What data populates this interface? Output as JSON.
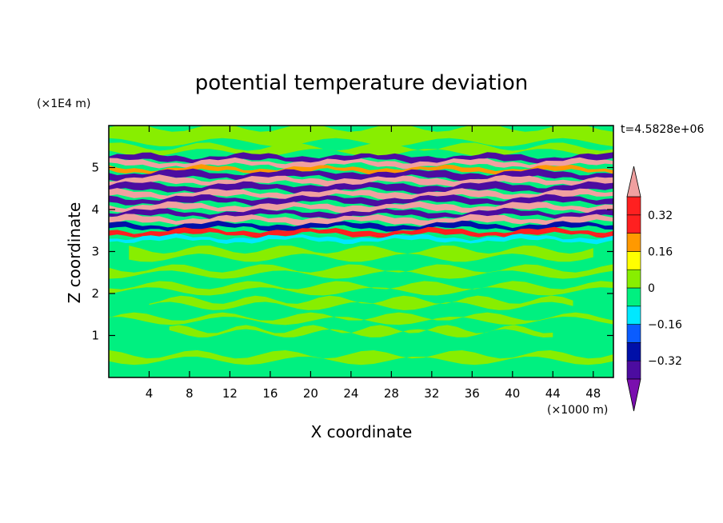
{
  "chart_data": {
    "type": "heatmap",
    "title": "potential temperature deviation",
    "xlabel": "X coordinate",
    "ylabel": "Z coordinate",
    "x_unit": "(×1000 m)",
    "y_unit": "(×1E4 m)",
    "time_label": "t=4.5828e+06",
    "x_range": [
      0,
      50
    ],
    "y_range": [
      0,
      6
    ],
    "x_ticks": [
      4,
      8,
      12,
      16,
      20,
      24,
      28,
      32,
      36,
      40,
      44,
      48
    ],
    "y_ticks": [
      1,
      2,
      3,
      4,
      5
    ],
    "colorbar": {
      "levels": [
        -0.4,
        -0.32,
        -0.24,
        -0.16,
        -0.08,
        0,
        0.08,
        0.16,
        0.24,
        0.32,
        0.4
      ],
      "labels": [
        0.32,
        0.16,
        0,
        -0.16,
        -0.32
      ],
      "label_text": [
        "0.32",
        "0.16",
        "0",
        "−0.16",
        "−0.32"
      ],
      "colors": [
        "#7a0fae",
        "#4c0ca0",
        "#0010a8",
        "#0a5cff",
        "#00e8ff",
        "#00f080",
        "#88ee00",
        "#ffff00",
        "#ff9900",
        "#ff2020",
        "#f0a0a0"
      ],
      "extend": "both"
    },
    "bands": [
      {
        "z": 5.22,
        "value": -0.34,
        "thickness": 0.07
      },
      {
        "z": 5.1,
        "value": 0.38,
        "thickness": 0.06
      },
      {
        "z": 4.95,
        "value": 0.2,
        "thickness": 0.05
      },
      {
        "z": 4.82,
        "value": -0.4,
        "thickness": 0.08
      },
      {
        "z": 4.68,
        "value": 0.4,
        "thickness": 0.07
      },
      {
        "z": 4.52,
        "value": -0.38,
        "thickness": 0.08
      },
      {
        "z": 4.36,
        "value": 0.36,
        "thickness": 0.07
      },
      {
        "z": 4.22,
        "value": -0.36,
        "thickness": 0.07
      },
      {
        "z": 4.05,
        "value": 0.32,
        "thickness": 0.07
      },
      {
        "z": 3.9,
        "value": -0.36,
        "thickness": 0.06
      },
      {
        "z": 3.75,
        "value": 0.38,
        "thickness": 0.07
      },
      {
        "z": 3.6,
        "value": -0.32,
        "thickness": 0.06
      },
      {
        "z": 3.45,
        "value": 0.28,
        "thickness": 0.06
      },
      {
        "z": 3.3,
        "value": -0.1,
        "thickness": 0.05
      }
    ]
  }
}
